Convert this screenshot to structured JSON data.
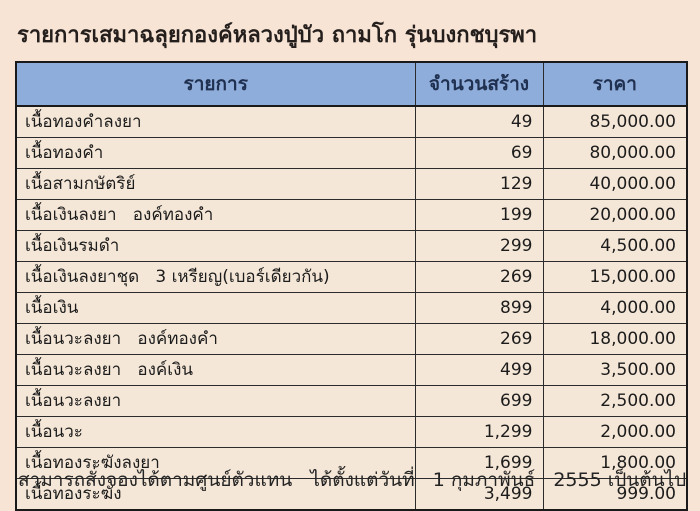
{
  "page": {
    "title": "รายการเสมาฉลุยกองค์หลวงปู่บัว ถามโก รุ่นบงกชบุรพา",
    "footer": "สามารถสั่งจองได้ตามศูนย์ตัวแทน   ได้ตั้งแต่วันที่   1 กุมภาพันธ์   2555 เป็นต้นไป"
  },
  "colors": {
    "page_background": "#f8e4d5",
    "cell_background": "#f5e7d7",
    "header_background": "#8fadda",
    "header_text": "#1f3050",
    "border": "#1a1a1a"
  },
  "table": {
    "columns": [
      {
        "label": "รายการ",
        "align": "left"
      },
      {
        "label": "จำนวนสร้าง",
        "align": "right"
      },
      {
        "label": "ราคา",
        "align": "right"
      }
    ],
    "rows": [
      {
        "item": "เนื้อทองคำลงยา",
        "quantity": "49",
        "price": "85,000.00"
      },
      {
        "item": "เนื้อทองคำ",
        "quantity": "69",
        "price": "80,000.00"
      },
      {
        "item": "เนื้อสามกษัตริย์",
        "quantity": "129",
        "price": "40,000.00"
      },
      {
        "item": "เนื้อเงินลงยา   องค์ทองคำ",
        "quantity": "199",
        "price": "20,000.00"
      },
      {
        "item": "เนื้อเงินรมดำ",
        "quantity": "299",
        "price": "4,500.00"
      },
      {
        "item": "เนื้อเงินลงยาชุด   3 เหรียญ(เบอร์เดียวกัน)",
        "quantity": "269",
        "price": "15,000.00"
      },
      {
        "item": "เนื้อเงิน",
        "quantity": "899",
        "price": "4,000.00"
      },
      {
        "item": "เนื้อนวะลงยา   องค์ทองคำ",
        "quantity": "269",
        "price": "18,000.00"
      },
      {
        "item": "เนื้อนวะลงยา   องค์เงิน",
        "quantity": "499",
        "price": "3,500.00"
      },
      {
        "item": "เนื้อนวะลงยา",
        "quantity": "699",
        "price": "2,500.00"
      },
      {
        "item": "เนื้อนวะ",
        "quantity": "1,299",
        "price": "2,000.00"
      },
      {
        "item": "เนื้อทองระฆังลงยา",
        "quantity": "1,699",
        "price": "1,800.00"
      },
      {
        "item": "เนื้อทองระฆัง",
        "quantity": "3,499",
        "price": "999.00"
      }
    ]
  }
}
